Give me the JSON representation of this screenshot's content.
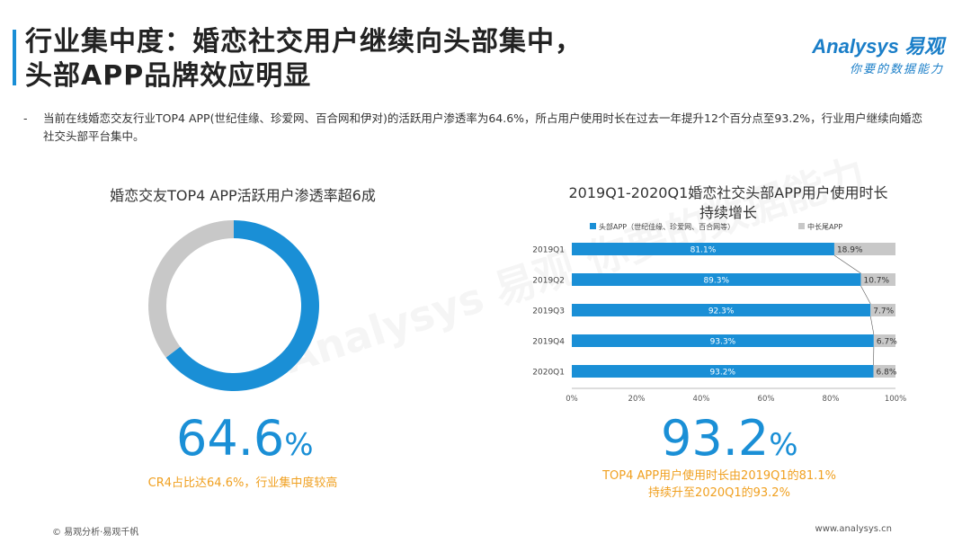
{
  "header": {
    "title": "行业集中度：婚恋社交用户继续向头部集中，\n头部APP品牌效应明显",
    "logo_main": "Analysys 易观",
    "logo_sub": "你要的数据能力"
  },
  "bullet": {
    "dash": "-",
    "text": "当前在线婚恋交友行业TOP4 APP(世纪佳缘、珍爱网、百合网和伊对)的活跃用户渗透率为64.6%，所占用户使用时长在过去一年提升12个百分点至93.2%，行业用户继续向婚恋社交头部平台集中。"
  },
  "left_panel": {
    "title": "婚恋交友TOP4 APP活跃用户渗透率超6成",
    "big_number": "64.6",
    "big_unit": "%",
    "note": "CR4占比达64.6%，行业集中度较高"
  },
  "right_panel": {
    "title": "2019Q1-2020Q1婚恋社交头部APP用户使用时长\n持续增长",
    "big_number": "93.2",
    "big_unit": "%",
    "note": "TOP4 APP用户使用时长由2019Q1的81.1%\n持续升至2020Q1的93.2%"
  },
  "watermark": "Analysys 易观 你要的数据能力",
  "footer": {
    "left": "© 易观分析·易观千帆",
    "right": "www.analysys.cn"
  },
  "chart_data": [
    {
      "type": "pie",
      "title": "婚恋交友TOP4 APP活跃用户渗透率超6成",
      "values": [
        64.6,
        35.4
      ],
      "colors": [
        "#1a8fd6",
        "#c8c8c8"
      ]
    },
    {
      "type": "bar",
      "orientation": "horizontal",
      "stacked": true,
      "title": "2019Q1-2020Q1婚恋社交头部APP用户使用时长持续增长",
      "categories": [
        "2019Q1",
        "2019Q2",
        "2019Q3",
        "2019Q4",
        "2020Q1"
      ],
      "series": [
        {
          "name": "头部APP（世纪佳缘、珍爱网、百合网等）",
          "values": [
            81.1,
            89.3,
            92.3,
            93.3,
            93.2
          ],
          "labels": [
            "81.1%",
            "89.3%",
            "92.3%",
            "93.3%",
            "93.2%"
          ],
          "color": "#1a8fd6"
        },
        {
          "name": "中长尾APP",
          "values": [
            18.9,
            10.7,
            7.7,
            6.7,
            6.8
          ],
          "labels": [
            "18.9%",
            "10.7%",
            "7.7%",
            "6.7%",
            "6.8%"
          ],
          "color": "#c8c8c8"
        }
      ],
      "xlim": [
        0,
        100
      ],
      "xticks": [
        "0%",
        "20%",
        "40%",
        "60%",
        "80%",
        "100%"
      ],
      "legend": "top"
    }
  ]
}
